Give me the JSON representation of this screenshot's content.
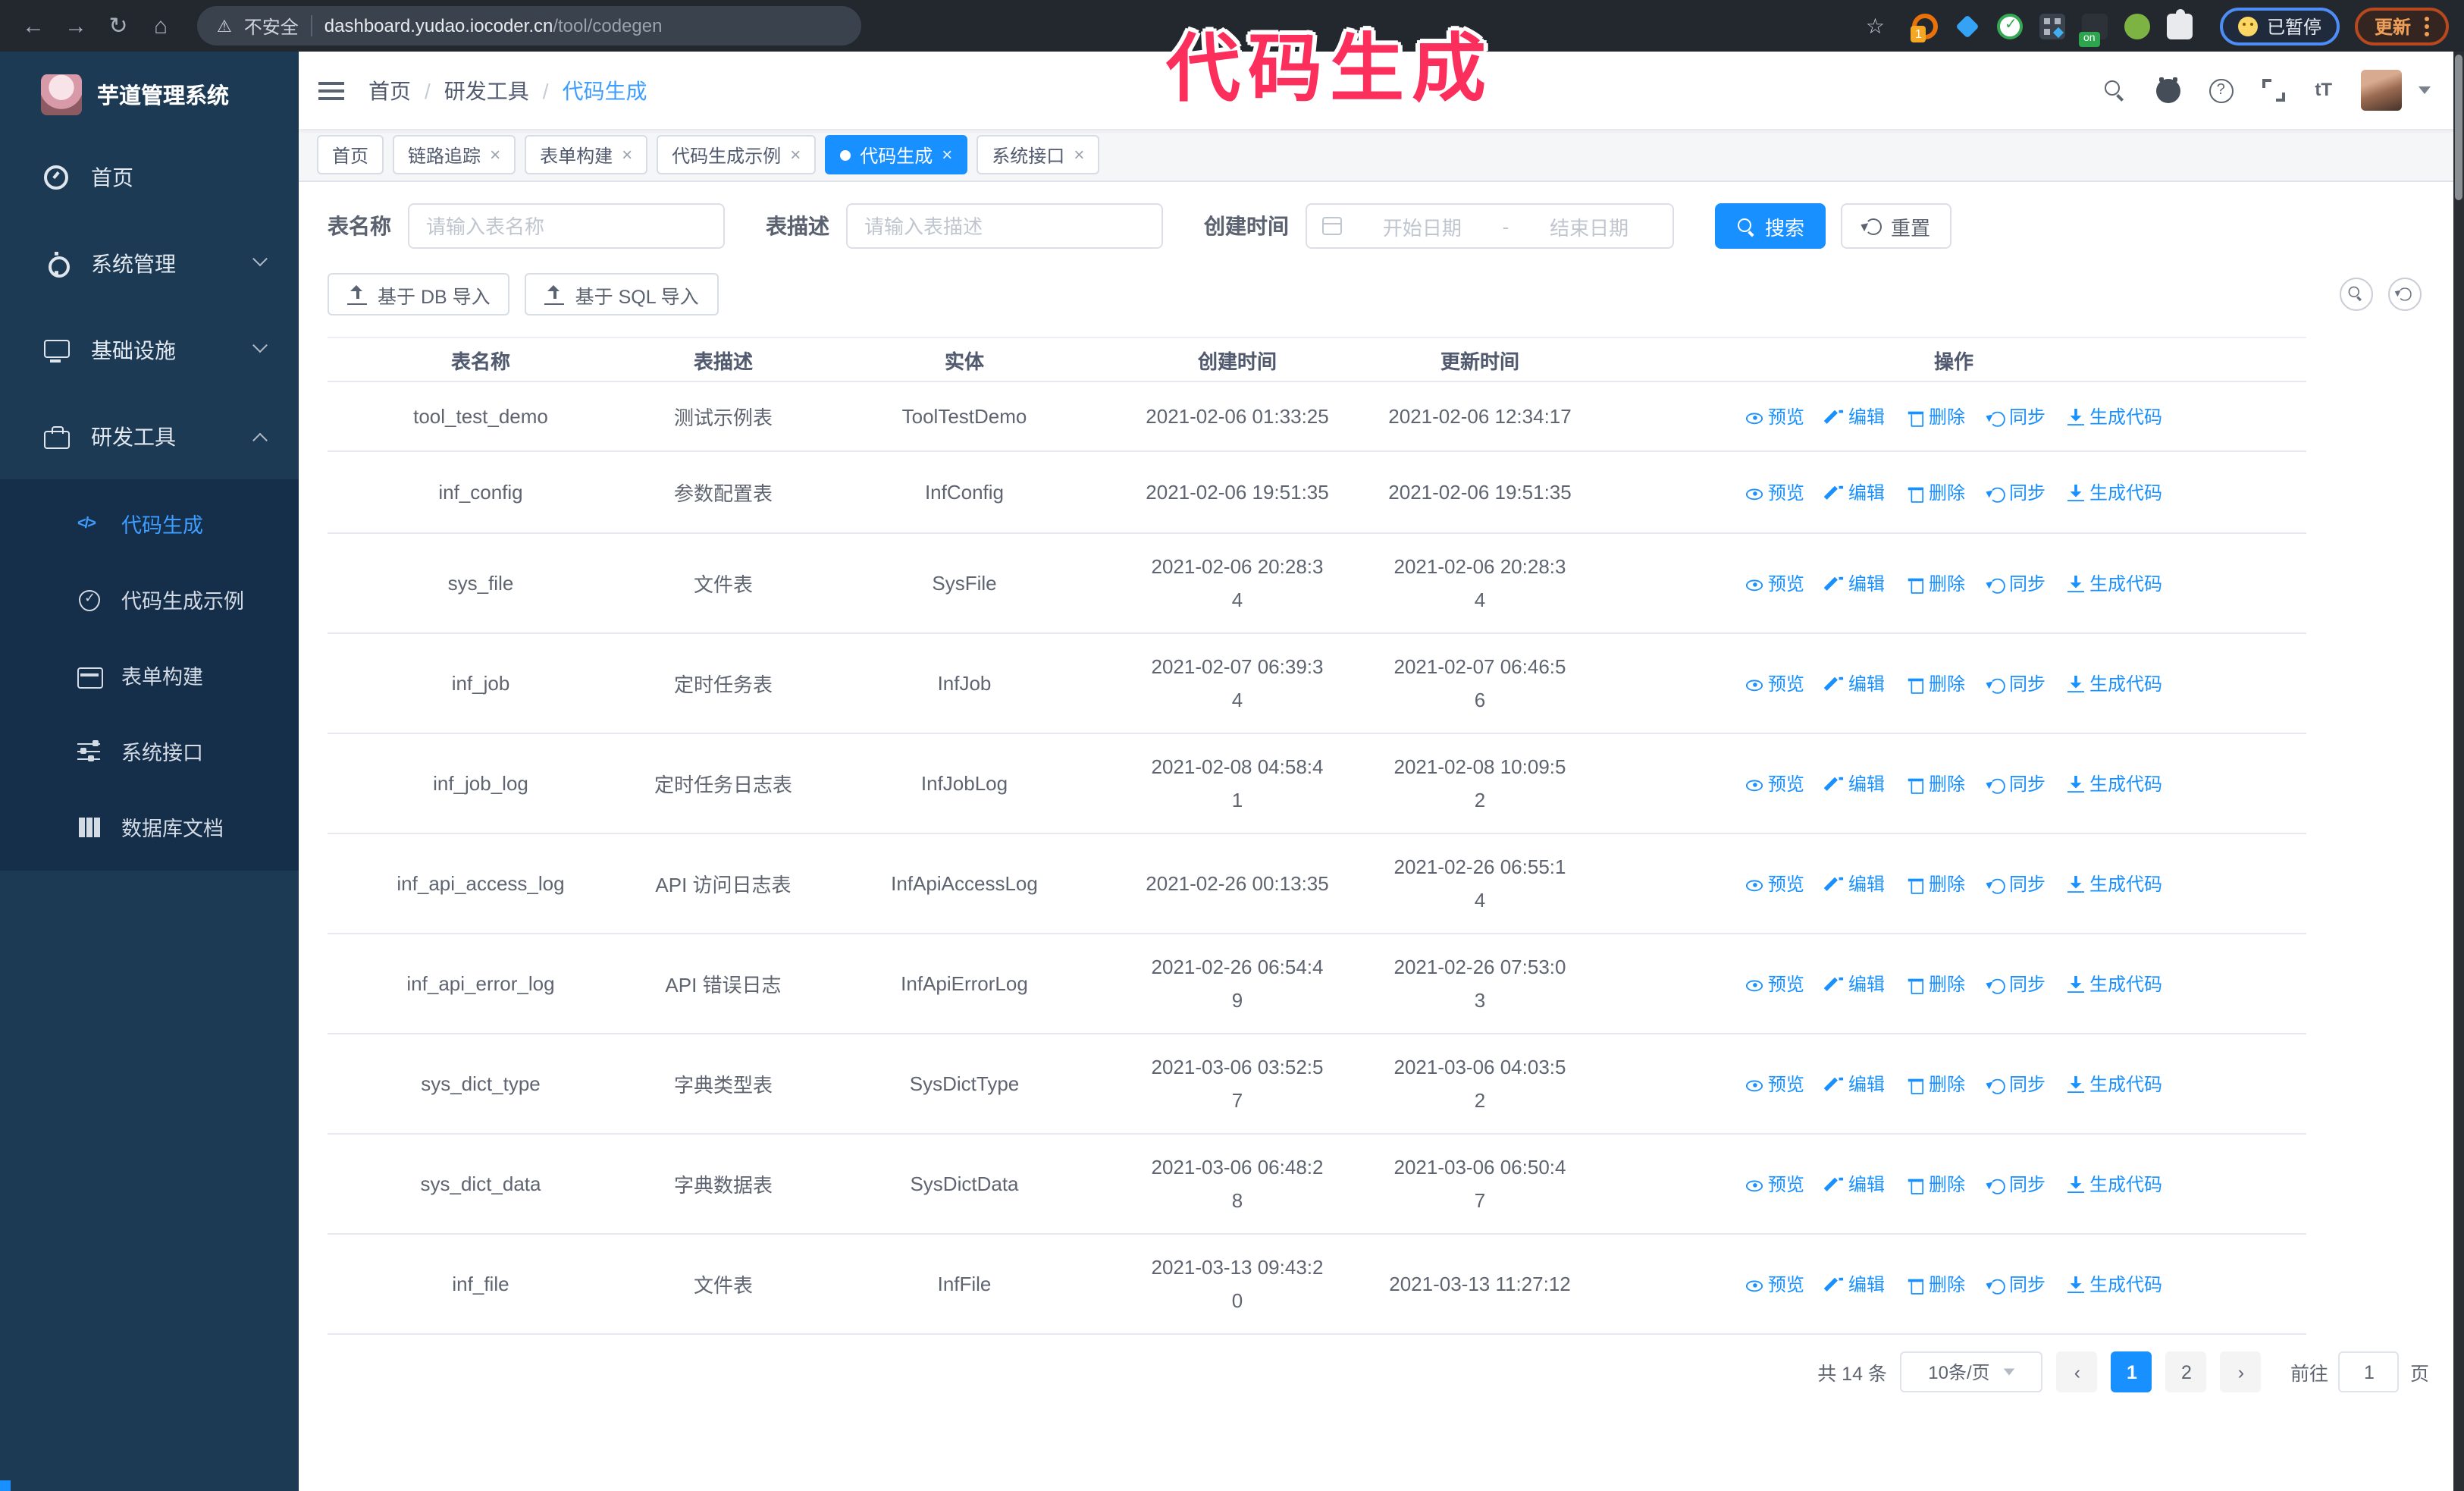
{
  "colors": {
    "accent": "#1890ff",
    "sidebar_bg": "#1d3a54",
    "submenu_bg": "#152e4a",
    "annotation": "#fb2e5c",
    "active_link": "#3d9eff"
  },
  "annotation": {
    "text": "代码生成"
  },
  "browser": {
    "security_label": "不安全",
    "url_domain": "dashboard.yudao.iocoder.cn",
    "url_path": "/tool/codegen",
    "extension_badge": "1",
    "extension_on_badge": "on",
    "paused_badge": "已暂停",
    "update_button": "更新"
  },
  "sidebar": {
    "title": "芋道管理系统",
    "items": [
      {
        "label": "首页"
      },
      {
        "label": "系统管理"
      },
      {
        "label": "基础设施"
      },
      {
        "label": "研发工具"
      }
    ],
    "submenu": [
      {
        "label": "代码生成",
        "active": true
      },
      {
        "label": "代码生成示例"
      },
      {
        "label": "表单构建"
      },
      {
        "label": "系统接口"
      },
      {
        "label": "数据库文档"
      }
    ]
  },
  "breadcrumb": {
    "home": "首页",
    "section": "研发工具",
    "current": "代码生成",
    "separator": "/"
  },
  "tabs": [
    {
      "label": "首页"
    },
    {
      "label": "链路追踪",
      "closable": true
    },
    {
      "label": "表单构建",
      "closable": true
    },
    {
      "label": "代码生成示例",
      "closable": true
    },
    {
      "label": "代码生成",
      "closable": true,
      "active": true
    },
    {
      "label": "系统接口",
      "closable": true
    }
  ],
  "filters": {
    "name_label": "表名称",
    "name_placeholder": "请输入表名称",
    "desc_label": "表描述",
    "desc_placeholder": "请输入表描述",
    "time_label": "创建时间",
    "start_placeholder": "开始日期",
    "range_separator": "-",
    "end_placeholder": "结束日期",
    "search_label": "搜索",
    "reset_label": "重置"
  },
  "toolbar": {
    "import_db": "基于 DB 导入",
    "import_sql": "基于 SQL 导入"
  },
  "table": {
    "columns": [
      "表名称",
      "表描述",
      "实体",
      "创建时间",
      "更新时间",
      "操作"
    ],
    "actions": [
      "预览",
      "编辑",
      "删除",
      "同步",
      "生成代码"
    ],
    "rows": [
      {
        "name": "tool_test_demo",
        "desc": "测试示例表",
        "entity": "ToolTestDemo",
        "created": [
          "2021-02-06 01:33:25"
        ],
        "updated": [
          "2021-02-06 12:34:17"
        ]
      },
      {
        "name": "inf_config",
        "desc": "参数配置表",
        "entity": "InfConfig",
        "created": [
          "2021-02-06 19:51:35"
        ],
        "updated": [
          "2021-02-06 19:51:35"
        ]
      },
      {
        "name": "sys_file",
        "desc": "文件表",
        "entity": "SysFile",
        "created": [
          "2021-02-06 20:28:3",
          "4"
        ],
        "updated": [
          "2021-02-06 20:28:3",
          "4"
        ]
      },
      {
        "name": "inf_job",
        "desc": "定时任务表",
        "entity": "InfJob",
        "created": [
          "2021-02-07 06:39:3",
          "4"
        ],
        "updated": [
          "2021-02-07 06:46:5",
          "6"
        ]
      },
      {
        "name": "inf_job_log",
        "desc": "定时任务日志表",
        "entity": "InfJobLog",
        "created": [
          "2021-02-08 04:58:4",
          "1"
        ],
        "updated": [
          "2021-02-08 10:09:5",
          "2"
        ]
      },
      {
        "name": "inf_api_access_log",
        "desc": "API 访问日志表",
        "entity": "InfApiAccessLog",
        "created": [
          "2021-02-26 00:13:35"
        ],
        "updated": [
          "2021-02-26 06:55:1",
          "4"
        ]
      },
      {
        "name": "inf_api_error_log",
        "desc": "API 错误日志",
        "entity": "InfApiErrorLog",
        "created": [
          "2021-02-26 06:54:4",
          "9"
        ],
        "updated": [
          "2021-02-26 07:53:0",
          "3"
        ]
      },
      {
        "name": "sys_dict_type",
        "desc": "字典类型表",
        "entity": "SysDictType",
        "created": [
          "2021-03-06 03:52:5",
          "7"
        ],
        "updated": [
          "2021-03-06 04:03:5",
          "2"
        ]
      },
      {
        "name": "sys_dict_data",
        "desc": "字典数据表",
        "entity": "SysDictData",
        "created": [
          "2021-03-06 06:48:2",
          "8"
        ],
        "updated": [
          "2021-03-06 06:50:4",
          "7"
        ]
      },
      {
        "name": "inf_file",
        "desc": "文件表",
        "entity": "InfFile",
        "created": [
          "2021-03-13 09:43:2",
          "0"
        ],
        "updated": [
          "2021-03-13 11:27:12"
        ]
      }
    ]
  },
  "pagination": {
    "total": "共 14 条",
    "page_size": "10条/页",
    "prev": "‹",
    "next": "›",
    "page1": "1",
    "page2": "2",
    "goto_label": "前往",
    "goto_value": "1",
    "goto_suffix": "页"
  }
}
